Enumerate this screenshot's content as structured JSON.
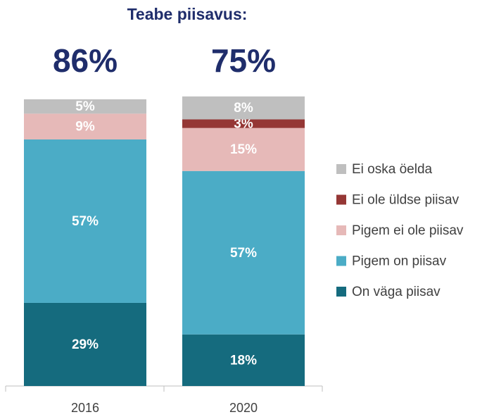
{
  "chart_data": {
    "type": "stacked_bar",
    "title": "Teabe piisavus:",
    "annotations": [
      "86%",
      "75%"
    ],
    "categories": [
      "2016",
      "2020"
    ],
    "series": [
      {
        "name": "On väga piisav",
        "color": "#156b7e",
        "values": [
          29,
          18
        ],
        "value_labels": [
          "29%",
          "18%"
        ]
      },
      {
        "name": "Pigem on piisav",
        "color": "#4bacc6",
        "values": [
          57,
          57
        ],
        "value_labels": [
          "57%",
          "57%"
        ]
      },
      {
        "name": "Pigem ei ole piisav",
        "color": "#e6b9b8",
        "values": [
          9,
          15
        ],
        "value_labels": [
          "9%",
          "15%"
        ]
      },
      {
        "name": "Ei ole üldse piisav",
        "color": "#953735",
        "values": [
          0,
          3
        ],
        "value_labels": [
          null,
          "3%"
        ]
      },
      {
        "name": "Ei oska öelda",
        "color": "#bfbfbf",
        "values": [
          5,
          8
        ],
        "value_labels": [
          "5%",
          "8%"
        ]
      }
    ],
    "ylim": [
      0,
      100
    ],
    "legend": "right"
  }
}
